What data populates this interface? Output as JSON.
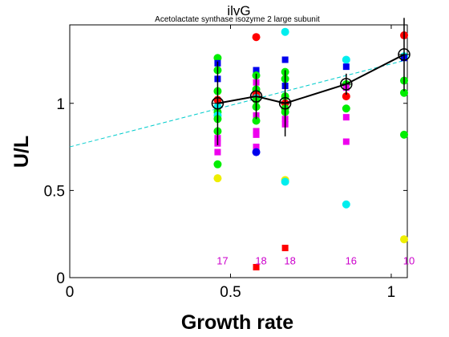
{
  "chart_data": {
    "type": "scatter",
    "title": "ilvG",
    "subtitle": "Acetolactate synthase isozyme 2 large subunit",
    "xlabel": "Growth rate",
    "ylabel": "U/L",
    "xlim": [
      0,
      1.05
    ],
    "ylim": [
      0,
      1.45
    ],
    "xticks": [
      0,
      0.5,
      1
    ],
    "xtick_labels": [
      "0",
      "0.5",
      "1"
    ],
    "yticks": [
      0,
      0.5,
      1
    ],
    "ytick_labels": [
      "0",
      "0.5",
      "1"
    ],
    "grid": false,
    "colors": {
      "red": "#ff0000",
      "green": "#00ee00",
      "blue": "#0000ee",
      "cyan": "#00eeee",
      "magenta": "#ee00ee",
      "yellow": "#eeee00",
      "mean": "#000000",
      "fit": "#00cccc",
      "count": "#cc00cc"
    },
    "points": [
      {
        "x": 0.46,
        "y": 1.26,
        "color": "green",
        "shape": "circle"
      },
      {
        "x": 0.46,
        "y": 1.23,
        "color": "blue",
        "shape": "square"
      },
      {
        "x": 0.46,
        "y": 1.19,
        "color": "green",
        "shape": "circle"
      },
      {
        "x": 0.46,
        "y": 1.14,
        "color": "blue",
        "shape": "square"
      },
      {
        "x": 0.46,
        "y": 1.07,
        "color": "green",
        "shape": "circle"
      },
      {
        "x": 0.46,
        "y": 1.02,
        "color": "red",
        "shape": "circle"
      },
      {
        "x": 0.46,
        "y": 0.98,
        "color": "cyan",
        "shape": "circle"
      },
      {
        "x": 0.46,
        "y": 0.95,
        "color": "green",
        "shape": "circle"
      },
      {
        "x": 0.46,
        "y": 0.93,
        "color": "cyan",
        "shape": "circle"
      },
      {
        "x": 0.46,
        "y": 0.91,
        "color": "green",
        "shape": "circle"
      },
      {
        "x": 0.46,
        "y": 0.84,
        "color": "green",
        "shape": "circle"
      },
      {
        "x": 0.46,
        "y": 0.8,
        "color": "magenta",
        "shape": "square"
      },
      {
        "x": 0.46,
        "y": 0.77,
        "color": "magenta",
        "shape": "square"
      },
      {
        "x": 0.46,
        "y": 0.72,
        "color": "magenta",
        "shape": "square"
      },
      {
        "x": 0.46,
        "y": 0.65,
        "color": "green",
        "shape": "circle"
      },
      {
        "x": 0.46,
        "y": 0.57,
        "color": "yellow",
        "shape": "circle"
      },
      {
        "x": 0.58,
        "y": 1.38,
        "color": "red",
        "shape": "circle"
      },
      {
        "x": 0.58,
        "y": 1.19,
        "color": "blue",
        "shape": "square"
      },
      {
        "x": 0.58,
        "y": 1.16,
        "color": "green",
        "shape": "circle"
      },
      {
        "x": 0.58,
        "y": 1.12,
        "color": "magenta",
        "shape": "square"
      },
      {
        "x": 0.58,
        "y": 1.08,
        "color": "green",
        "shape": "circle"
      },
      {
        "x": 0.58,
        "y": 1.05,
        "color": "red",
        "shape": "circle"
      },
      {
        "x": 0.58,
        "y": 1.03,
        "color": "cyan",
        "shape": "circle"
      },
      {
        "x": 0.58,
        "y": 1.02,
        "color": "green",
        "shape": "circle"
      },
      {
        "x": 0.58,
        "y": 0.98,
        "color": "green",
        "shape": "circle"
      },
      {
        "x": 0.58,
        "y": 0.93,
        "color": "magenta",
        "shape": "square"
      },
      {
        "x": 0.58,
        "y": 0.9,
        "color": "green",
        "shape": "circle"
      },
      {
        "x": 0.58,
        "y": 0.84,
        "color": "magenta",
        "shape": "square"
      },
      {
        "x": 0.58,
        "y": 0.82,
        "color": "magenta",
        "shape": "square"
      },
      {
        "x": 0.58,
        "y": 0.75,
        "color": "magenta",
        "shape": "square"
      },
      {
        "x": 0.58,
        "y": 0.72,
        "color": "blue",
        "shape": "circle"
      },
      {
        "x": 0.58,
        "y": 0.06,
        "color": "red",
        "shape": "square"
      },
      {
        "x": 0.67,
        "y": 1.41,
        "color": "cyan",
        "shape": "circle"
      },
      {
        "x": 0.67,
        "y": 1.25,
        "color": "blue",
        "shape": "square"
      },
      {
        "x": 0.67,
        "y": 1.18,
        "color": "green",
        "shape": "circle"
      },
      {
        "x": 0.67,
        "y": 1.14,
        "color": "green",
        "shape": "circle"
      },
      {
        "x": 0.67,
        "y": 1.1,
        "color": "blue",
        "shape": "square"
      },
      {
        "x": 0.67,
        "y": 1.04,
        "color": "green",
        "shape": "circle"
      },
      {
        "x": 0.67,
        "y": 1.0,
        "color": "red",
        "shape": "circle"
      },
      {
        "x": 0.67,
        "y": 0.97,
        "color": "green",
        "shape": "circle"
      },
      {
        "x": 0.67,
        "y": 0.95,
        "color": "green",
        "shape": "circle"
      },
      {
        "x": 0.67,
        "y": 0.91,
        "color": "magenta",
        "shape": "square"
      },
      {
        "x": 0.67,
        "y": 0.88,
        "color": "magenta",
        "shape": "square"
      },
      {
        "x": 0.67,
        "y": 0.56,
        "color": "yellow",
        "shape": "circle"
      },
      {
        "x": 0.67,
        "y": 0.55,
        "color": "cyan",
        "shape": "circle"
      },
      {
        "x": 0.67,
        "y": 0.17,
        "color": "red",
        "shape": "square"
      },
      {
        "x": 0.86,
        "y": 1.25,
        "color": "cyan",
        "shape": "circle"
      },
      {
        "x": 0.86,
        "y": 1.21,
        "color": "blue",
        "shape": "square"
      },
      {
        "x": 0.86,
        "y": 1.11,
        "color": "green",
        "shape": "circle"
      },
      {
        "x": 0.86,
        "y": 1.09,
        "color": "magenta",
        "shape": "square"
      },
      {
        "x": 0.86,
        "y": 1.04,
        "color": "red",
        "shape": "circle"
      },
      {
        "x": 0.86,
        "y": 0.97,
        "color": "green",
        "shape": "circle"
      },
      {
        "x": 0.86,
        "y": 0.92,
        "color": "magenta",
        "shape": "square"
      },
      {
        "x": 0.86,
        "y": 0.78,
        "color": "magenta",
        "shape": "square"
      },
      {
        "x": 0.86,
        "y": 0.42,
        "color": "cyan",
        "shape": "circle"
      },
      {
        "x": 1.04,
        "y": 1.39,
        "color": "red",
        "shape": "circle"
      },
      {
        "x": 1.04,
        "y": 1.27,
        "color": "cyan",
        "shape": "circle"
      },
      {
        "x": 1.04,
        "y": 1.26,
        "color": "blue",
        "shape": "square"
      },
      {
        "x": 1.04,
        "y": 1.13,
        "color": "green",
        "shape": "circle"
      },
      {
        "x": 1.04,
        "y": 1.06,
        "color": "green",
        "shape": "circle"
      },
      {
        "x": 1.04,
        "y": 0.82,
        "color": "green",
        "shape": "circle"
      },
      {
        "x": 1.04,
        "y": 0.22,
        "color": "yellow",
        "shape": "circle"
      }
    ],
    "mean_series": {
      "x": [
        0.46,
        0.58,
        0.67,
        0.86,
        1.04
      ],
      "y": [
        1.0,
        1.04,
        1.0,
        1.11,
        1.28
      ],
      "err": [
        0.24,
        0.13,
        0.19,
        0.06,
        0.21
      ]
    },
    "fit_line": {
      "x": [
        0,
        1.05
      ],
      "y": [
        0.75,
        1.25
      ]
    },
    "counts": [
      {
        "x": 0.46,
        "label": "17"
      },
      {
        "x": 0.58,
        "label": "18"
      },
      {
        "x": 0.67,
        "label": "18"
      },
      {
        "x": 0.86,
        "label": "16"
      },
      {
        "x": 1.04,
        "label": "10"
      }
    ],
    "count_label_y": 0.1
  }
}
